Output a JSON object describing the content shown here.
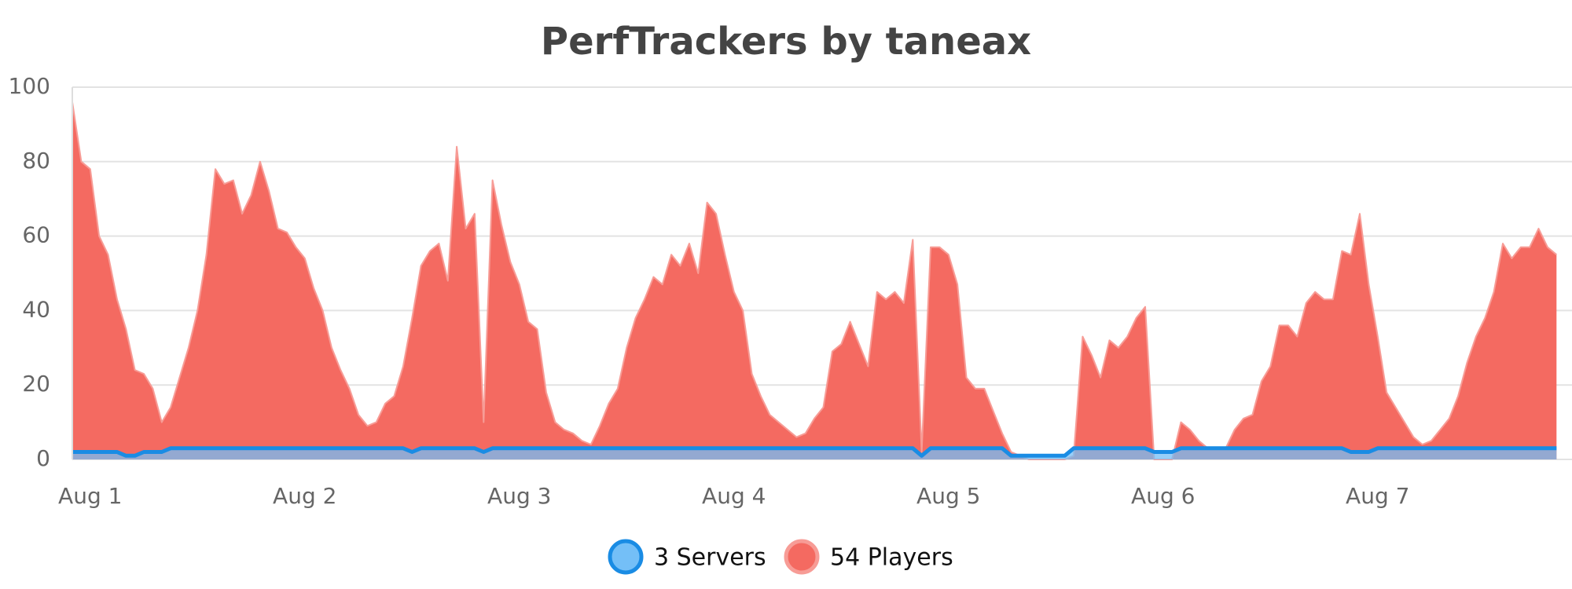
{
  "chart_data": {
    "type": "area",
    "title": "PerfTrackers by taneax",
    "categories": [
      null,
      null,
      "Aug 1",
      null,
      null,
      null,
      null,
      null,
      null,
      null,
      null,
      null,
      null,
      null,
      null,
      null,
      null,
      null,
      null,
      null,
      null,
      null,
      null,
      null,
      null,
      null,
      "Aug 2",
      null,
      null,
      null,
      null,
      null,
      null,
      null,
      null,
      null,
      null,
      null,
      null,
      null,
      null,
      null,
      null,
      null,
      null,
      null,
      null,
      null,
      null,
      null,
      "Aug 3",
      null,
      null,
      null,
      null,
      null,
      null,
      null,
      null,
      null,
      null,
      null,
      null,
      null,
      null,
      null,
      null,
      null,
      null,
      null,
      null,
      null,
      null,
      null,
      "Aug 4",
      null,
      null,
      null,
      null,
      null,
      null,
      null,
      null,
      null,
      null,
      null,
      null,
      null,
      null,
      null,
      null,
      null,
      null,
      null,
      null,
      null,
      null,
      null,
      "Aug 5",
      null,
      null,
      null,
      null,
      null,
      null,
      null,
      null,
      null,
      null,
      null,
      null,
      null,
      null,
      null,
      null,
      null,
      null,
      null,
      null,
      null,
      null,
      null,
      "Aug 6",
      null,
      null,
      null,
      null,
      null,
      null,
      null,
      null,
      null,
      null,
      null,
      null,
      null,
      null,
      null,
      null,
      null,
      null,
      null,
      null,
      null,
      null,
      null,
      "Aug 7",
      null,
      null,
      null,
      null,
      null,
      null,
      null,
      null,
      null,
      null,
      null,
      null,
      null,
      null,
      null,
      null,
      null,
      null,
      null,
      null
    ],
    "series": [
      {
        "name": "3 Servers",
        "color": "#1a8ce4",
        "fill": "#74bff7",
        "values": [
          2,
          2,
          2,
          2,
          2,
          2,
          1,
          1,
          2,
          2,
          2,
          3,
          3,
          3,
          3,
          3,
          3,
          3,
          3,
          3,
          3,
          3,
          3,
          3,
          3,
          3,
          3,
          3,
          3,
          3,
          3,
          3,
          3,
          3,
          3,
          3,
          3,
          3,
          2,
          3,
          3,
          3,
          3,
          3,
          3,
          3,
          2,
          3,
          3,
          3,
          3,
          3,
          3,
          3,
          3,
          3,
          3,
          3,
          3,
          3,
          3,
          3,
          3,
          3,
          3,
          3,
          3,
          3,
          3,
          3,
          3,
          3,
          3,
          3,
          3,
          3,
          3,
          3,
          3,
          3,
          3,
          3,
          3,
          3,
          3,
          3,
          3,
          3,
          3,
          3,
          3,
          3,
          3,
          3,
          3,
          1,
          3,
          3,
          3,
          3,
          3,
          3,
          3,
          3,
          3,
          1,
          1,
          1,
          1,
          1,
          1,
          1,
          3,
          3,
          3,
          3,
          3,
          3,
          3,
          3,
          3,
          2,
          2,
          2,
          3,
          3,
          3,
          3,
          3,
          3,
          3,
          3,
          3,
          3,
          3,
          3,
          3,
          3,
          3,
          3,
          3,
          3,
          3,
          2,
          2,
          2,
          3,
          3,
          3,
          3,
          3,
          3,
          3,
          3,
          3,
          3,
          3,
          3,
          3,
          3,
          3,
          3,
          3,
          3,
          3,
          3,
          3
        ]
      },
      {
        "name": "54 Players",
        "color": "#f79c96",
        "fill": "#f46a61",
        "values": [
          96,
          80,
          78,
          60,
          55,
          43,
          35,
          24,
          23,
          19,
          10,
          14,
          22,
          30,
          40,
          55,
          78,
          74,
          75,
          66,
          71,
          80,
          72,
          62,
          61,
          57,
          54,
          46,
          40,
          30,
          24,
          19,
          12,
          9,
          10,
          15,
          17,
          25,
          38,
          52,
          56,
          58,
          48,
          84,
          62,
          66,
          10,
          75,
          63,
          53,
          47,
          37,
          35,
          18,
          10,
          8,
          7,
          5,
          4,
          9,
          15,
          19,
          30,
          38,
          43,
          49,
          47,
          55,
          52,
          58,
          50,
          69,
          66,
          55,
          45,
          40,
          23,
          17,
          12,
          10,
          8,
          6,
          7,
          11,
          14,
          29,
          31,
          37,
          31,
          25,
          45,
          43,
          45,
          42,
          59,
          2,
          57,
          57,
          55,
          47,
          22,
          19,
          19,
          13,
          7,
          2,
          1,
          0,
          0,
          0,
          0,
          0,
          1,
          33,
          28,
          22,
          32,
          30,
          33,
          38,
          41,
          0,
          0,
          0,
          10,
          8,
          5,
          3,
          3,
          3,
          8,
          11,
          12,
          21,
          25,
          36,
          36,
          33,
          42,
          45,
          43,
          43,
          56,
          55,
          66,
          47,
          33,
          18,
          14,
          10,
          6,
          4,
          5,
          8,
          11,
          17,
          26,
          33,
          38,
          45,
          58,
          54,
          57,
          57,
          62,
          57,
          55
        ]
      }
    ],
    "ylim": [
      0,
      100
    ],
    "yticks": [
      0,
      20,
      40,
      60,
      80,
      100
    ],
    "grid": true
  }
}
